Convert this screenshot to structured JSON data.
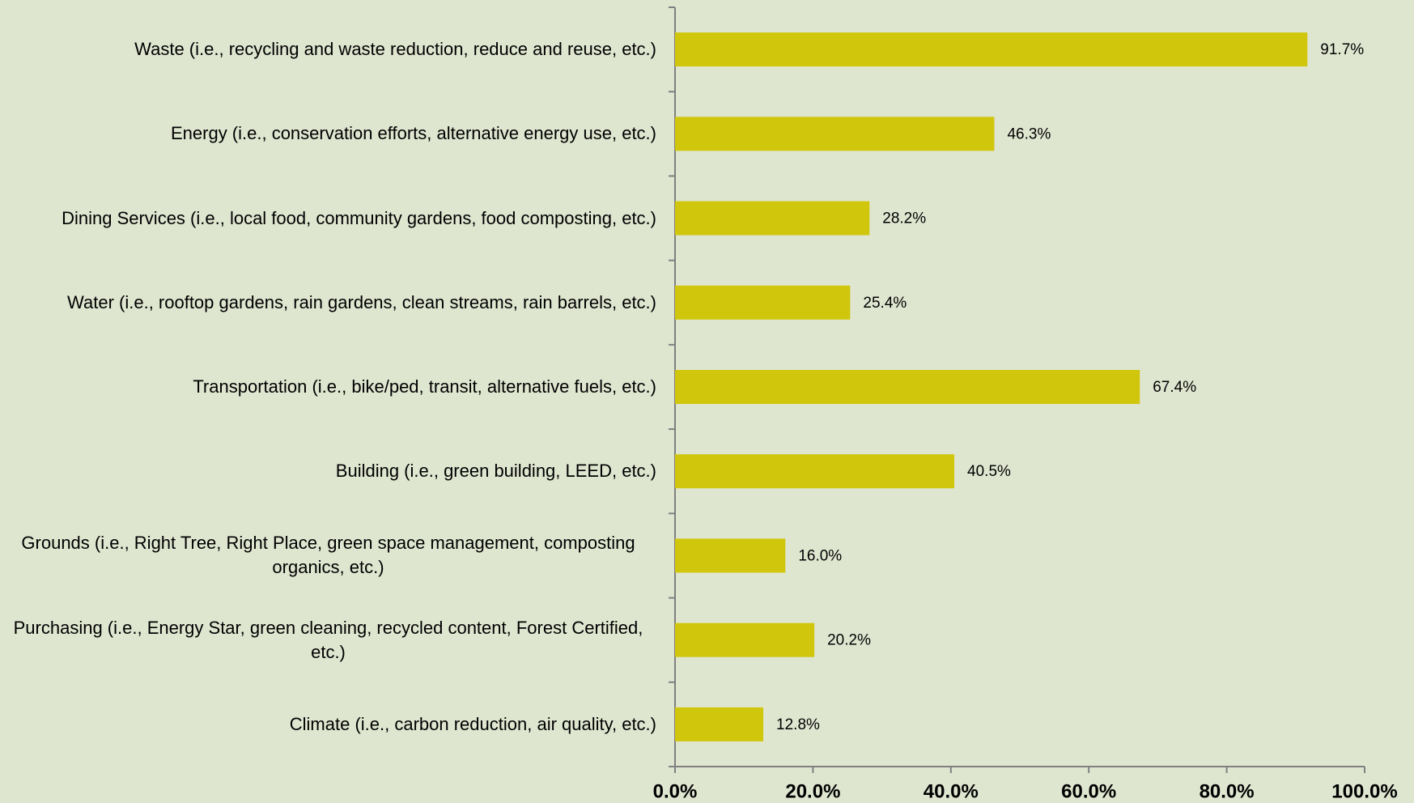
{
  "chart_data": {
    "type": "barh",
    "categories": [
      "Waste (i.e., recycling and waste reduction, reduce and reuse, etc.)",
      "Energy (i.e., conservation efforts, alternative energy use, etc.)",
      "Dining Services (i.e., local food, community gardens, food composting, etc.)",
      "Water (i.e., rooftop gardens, rain gardens, clean streams, rain barrels, etc.)",
      "Transportation (i.e., bike/ped, transit, alternative fuels, etc.)",
      "Building (i.e., green building, LEED, etc.)",
      "Grounds (i.e., Right Tree, Right Place, green space management, composting organics, etc.)",
      "Purchasing (i.e., Energy Star, green cleaning, recycled content, Forest Certified, etc.)",
      "Climate (i.e., carbon reduction, air quality, etc.)"
    ],
    "values": [
      91.7,
      46.3,
      28.2,
      25.4,
      67.4,
      40.5,
      16.0,
      20.2,
      12.8
    ],
    "value_labels": [
      "91.7%",
      "46.3%",
      "28.2%",
      "25.4%",
      "67.4%",
      "40.5%",
      "16.0%",
      "20.2%",
      "12.8%"
    ],
    "color": "#d0c60c",
    "xlim": [
      0,
      100
    ],
    "xticks": [
      {
        "value": 0,
        "label": "0.0%"
      },
      {
        "value": 20,
        "label": "20.0%"
      },
      {
        "value": 40,
        "label": "40.0%"
      },
      {
        "value": 60,
        "label": "60.0%"
      },
      {
        "value": 80,
        "label": "80.0%"
      },
      {
        "value": 100,
        "label": "100.0%"
      }
    ],
    "grid": false
  }
}
